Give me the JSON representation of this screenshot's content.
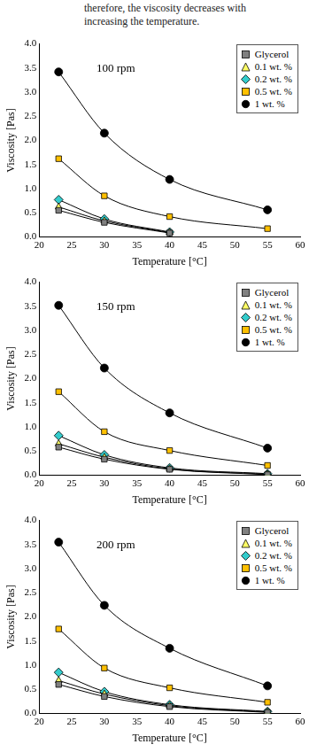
{
  "header_text": [
    "therefore, the viscosity decreases with",
    "increasing the temperature."
  ],
  "chart_data": [
    {
      "type": "scatter",
      "annotation": "100 rpm",
      "x_label": "Temperature [°C]",
      "y_label": "Viscosity [Pas]",
      "x": [
        23,
        30,
        40,
        55
      ],
      "series": [
        {
          "name": "Glycerol",
          "color": "#808080",
          "marker": "square",
          "line_style": "solid",
          "values": [
            0.55,
            0.3,
            0.08,
            null
          ]
        },
        {
          "name": "0.1 wt. %",
          "color": "#ffff66",
          "marker": "triangle",
          "line_style": "solid",
          "values": [
            0.62,
            0.33,
            0.09,
            null
          ]
        },
        {
          "name": "0.2 wt. %",
          "color": "#33cccc",
          "marker": "diamond",
          "line_style": "solid",
          "values": [
            0.77,
            0.37,
            0.1,
            null
          ]
        },
        {
          "name": "0.5 wt. %",
          "color": "#ffc000",
          "marker": "square",
          "line_style": "solid",
          "values": [
            1.62,
            0.85,
            0.42,
            0.17
          ]
        },
        {
          "name": "1 wt. %",
          "color": "#000000",
          "marker": "circle",
          "line_style": "solid",
          "values": [
            3.42,
            2.15,
            1.19,
            0.56
          ]
        }
      ],
      "xlim": [
        20,
        60
      ],
      "xticks": [
        20,
        25,
        30,
        35,
        40,
        45,
        50,
        55,
        60
      ],
      "ylim": [
        0,
        4
      ],
      "yticks": [
        {
          "value": 0,
          "label": "0.0"
        },
        {
          "value": 0.5,
          "label": "0.5"
        },
        {
          "value": 1,
          "label": "1.0"
        },
        {
          "value": 1.5,
          "label": "1.5"
        },
        {
          "value": 2,
          "label": "2.0"
        },
        {
          "value": 2.5,
          "label": "2.5"
        },
        {
          "value": 3,
          "label": "3.0"
        },
        {
          "value": 3.5,
          "label": "3.5"
        },
        {
          "value": 4,
          "label": "4.0"
        }
      ],
      "grid": false,
      "legend": "upper right"
    },
    {
      "type": "scatter",
      "annotation": "150 rpm",
      "x_label": "Temperature [°C]",
      "y_label": "Viscosity [Pas]",
      "x": [
        23,
        30,
        40,
        55
      ],
      "series": [
        {
          "name": "Glycerol",
          "color": "#808080",
          "marker": "square",
          "line_style": "solid",
          "values": [
            0.58,
            0.33,
            0.12,
            0.01
          ]
        },
        {
          "name": "0.1 wt. %",
          "color": "#ffff66",
          "marker": "triangle",
          "line_style": "solid",
          "values": [
            0.65,
            0.37,
            0.13,
            0.02
          ]
        },
        {
          "name": "0.2 wt. %",
          "color": "#33cccc",
          "marker": "diamond",
          "line_style": "solid",
          "values": [
            0.82,
            0.42,
            0.15,
            0.03
          ]
        },
        {
          "name": "0.5 wt. %",
          "color": "#ffc000",
          "marker": "square",
          "line_style": "solid",
          "values": [
            1.73,
            0.9,
            0.51,
            0.2
          ]
        },
        {
          "name": "1 wt. %",
          "color": "#000000",
          "marker": "circle",
          "line_style": "solid",
          "values": [
            3.52,
            2.22,
            1.29,
            0.56
          ]
        }
      ],
      "xlim": [
        20,
        60
      ],
      "xticks": [
        20,
        25,
        30,
        35,
        40,
        45,
        50,
        55,
        60
      ],
      "ylim": [
        0,
        4
      ],
      "yticks": [
        {
          "value": 0,
          "label": "0.0"
        },
        {
          "value": 0.5,
          "label": "0.5"
        },
        {
          "value": 1,
          "label": "1.0"
        },
        {
          "value": 1.5,
          "label": "1.5"
        },
        {
          "value": 2,
          "label": "2.0"
        },
        {
          "value": 2.5,
          "label": "2.5"
        },
        {
          "value": 3,
          "label": "3.0"
        },
        {
          "value": 3.5,
          "label": "3.5"
        },
        {
          "value": 4,
          "label": "4.0"
        }
      ],
      "grid": false,
      "legend": "upper right"
    },
    {
      "type": "scatter",
      "annotation": "200 rpm",
      "x_label": "Temperature [°C]",
      "y_label": "Viscosity [Pas]",
      "x": [
        23,
        30,
        40,
        55
      ],
      "series": [
        {
          "name": "Glycerol",
          "color": "#808080",
          "marker": "square",
          "line_style": "solid",
          "values": [
            0.6,
            0.35,
            0.14,
            0.02
          ]
        },
        {
          "name": "0.1 wt. %",
          "color": "#ffff66",
          "marker": "triangle",
          "line_style": "solid",
          "values": [
            0.68,
            0.4,
            0.16,
            0.03
          ]
        },
        {
          "name": "0.2 wt. %",
          "color": "#33cccc",
          "marker": "diamond",
          "line_style": "solid",
          "values": [
            0.85,
            0.45,
            0.18,
            0.04
          ]
        },
        {
          "name": "0.5 wt. %",
          "color": "#ffc000",
          "marker": "square",
          "line_style": "solid",
          "values": [
            1.75,
            0.94,
            0.53,
            0.23
          ]
        },
        {
          "name": "1 wt. %",
          "color": "#000000",
          "marker": "circle",
          "line_style": "solid",
          "values": [
            3.55,
            2.24,
            1.35,
            0.57
          ]
        }
      ],
      "xlim": [
        20,
        60
      ],
      "xticks": [
        20,
        25,
        30,
        35,
        40,
        45,
        50,
        55,
        60
      ],
      "ylim": [
        0,
        4
      ],
      "yticks": [
        {
          "value": 0,
          "label": "0.0"
        },
        {
          "value": 0.5,
          "label": "0.5"
        },
        {
          "value": 1,
          "label": "1.0"
        },
        {
          "value": 1.5,
          "label": "1.5"
        },
        {
          "value": 2,
          "label": "2.0"
        },
        {
          "value": 2.5,
          "label": "2.5"
        },
        {
          "value": 3,
          "label": "3.0"
        },
        {
          "value": 3.5,
          "label": "3.5"
        },
        {
          "value": 4,
          "label": "4.0"
        }
      ],
      "grid": false,
      "legend": "upper right"
    }
  ]
}
